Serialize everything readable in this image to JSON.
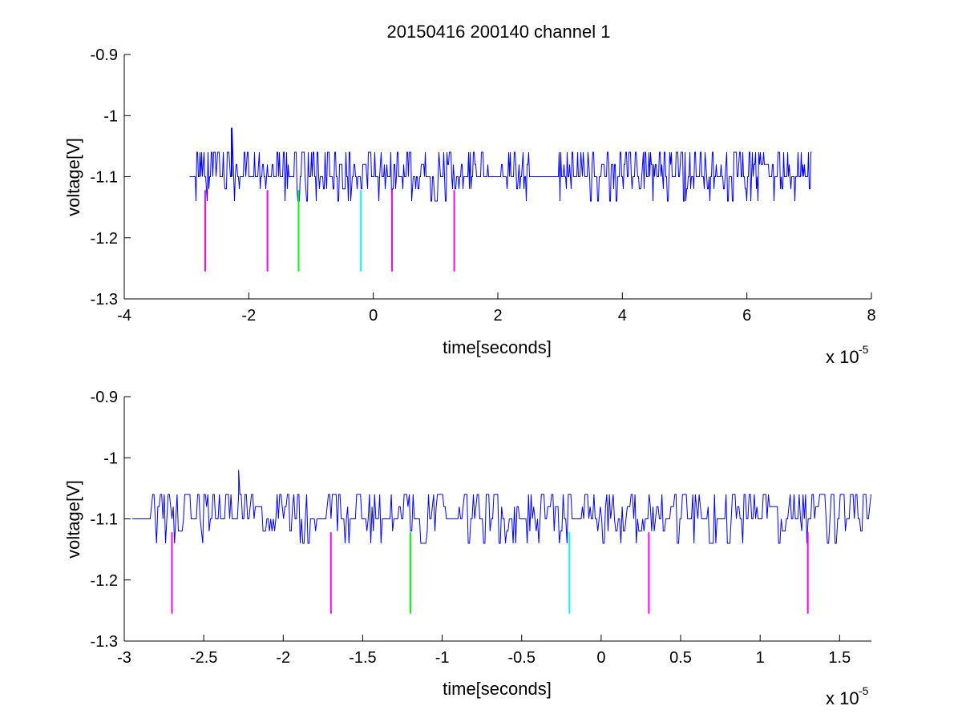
{
  "figure": {
    "title": "20150416 200140 channel 1"
  },
  "chart_data": [
    {
      "type": "line",
      "xlabel": "time[seconds]",
      "ylabel": "voltage[V]",
      "x_multiplier": "x 10",
      "x_exponent": "-5",
      "xlim": [
        -4,
        8
      ],
      "ylim": [
        -1.3,
        -0.9
      ],
      "xticks": [
        "-4",
        "-2",
        "0",
        "2",
        "4",
        "6",
        "8"
      ],
      "yticks": [
        "-0.9",
        "-1",
        "-1.1",
        "-1.2",
        "-1.3"
      ],
      "grid": false,
      "series": [
        {
          "color": "#0000ff",
          "x_range": [
            -2.95,
            7.05
          ],
          "baseline": -1.1,
          "levels": [
            -1.06,
            -1.08,
            -1.1,
            -1.12,
            -1.14
          ],
          "spike": {
            "x": -2.28,
            "y": -1.02
          }
        }
      ],
      "markers": [
        {
          "x": -2.7,
          "y": [
            -1.255,
            -1.122
          ],
          "color": "#ff00ff"
        },
        {
          "x": -1.7,
          "y": [
            -1.255,
            -1.122
          ],
          "color": "#ff00ff"
        },
        {
          "x": -1.2,
          "y": [
            -1.255,
            -1.122
          ],
          "color": "#00ff00"
        },
        {
          "x": -0.2,
          "y": [
            -1.255,
            -1.122
          ],
          "color": "#00ffff"
        },
        {
          "x": 0.3,
          "y": [
            -1.255,
            -1.122
          ],
          "color": "#ff00ff"
        },
        {
          "x": 1.3,
          "y": [
            -1.255,
            -1.122
          ],
          "color": "#ff00ff"
        }
      ]
    },
    {
      "type": "line",
      "xlabel": "time[seconds]",
      "ylabel": "voltage[V]",
      "x_multiplier": "x 10",
      "x_exponent": "-5",
      "xlim": [
        -3,
        1.7
      ],
      "ylim": [
        -1.3,
        -0.9
      ],
      "xticks": [
        "-3",
        "-2.5",
        "-2",
        "-1.5",
        "-1",
        "-0.5",
        "0",
        "0.5",
        "1",
        "1.5"
      ],
      "yticks": [
        "-0.9",
        "-1",
        "-1.1",
        "-1.2",
        "-1.3"
      ],
      "grid": false,
      "series": [
        {
          "color": "#0000ff",
          "x_range": [
            -2.95,
            1.7
          ],
          "baseline": -1.1,
          "levels": [
            -1.06,
            -1.08,
            -1.1,
            -1.12,
            -1.14
          ],
          "spike": {
            "x": -2.28,
            "y": -1.02
          }
        }
      ],
      "markers": [
        {
          "x": -2.7,
          "y": [
            -1.255,
            -1.122
          ],
          "color": "#ff00ff"
        },
        {
          "x": -1.7,
          "y": [
            -1.255,
            -1.122
          ],
          "color": "#ff00ff"
        },
        {
          "x": -1.2,
          "y": [
            -1.255,
            -1.122
          ],
          "color": "#00ff00"
        },
        {
          "x": -0.2,
          "y": [
            -1.255,
            -1.122
          ],
          "color": "#00ffff"
        },
        {
          "x": 0.3,
          "y": [
            -1.255,
            -1.122
          ],
          "color": "#ff00ff"
        },
        {
          "x": 1.3,
          "y": [
            -1.255,
            -1.122
          ],
          "color": "#ff00ff"
        }
      ]
    }
  ]
}
